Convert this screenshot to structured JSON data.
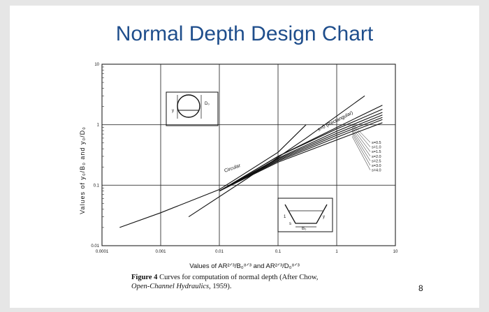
{
  "slide": {
    "title": "Normal Depth Design Chart",
    "page_number": "8"
  },
  "chart_data": {
    "type": "line",
    "title": "",
    "xlabel": "Values of AR²ᐟ³/B₀⁸ᐟ³ and AR²ᐟ³/D₀⁸ᐟ³",
    "ylabel": "Values of y₀/B₀ and y₀/D₀",
    "x_scale": "log",
    "y_scale": "log",
    "xlim": [
      0.0001,
      10
    ],
    "ylim": [
      0.01,
      10
    ],
    "x_ticks": [
      "0.0001",
      "0.001",
      "0.01",
      "0.1",
      "1",
      "10"
    ],
    "y_ticks": [
      "0.01",
      "0.1",
      "1",
      "10"
    ],
    "grid": true,
    "series": [
      {
        "name": "s=0 (Rectangular)",
        "x": [
          0.003,
          0.03,
          0.3,
          3.0
        ],
        "y": [
          0.03,
          0.13,
          0.6,
          3.0
        ]
      },
      {
        "name": "s=0.5",
        "x": [
          0.01,
          0.1,
          1.0,
          6.0
        ],
        "y": [
          0.08,
          0.3,
          0.9,
          2.1
        ]
      },
      {
        "name": "s=1.0",
        "x": [
          0.01,
          0.1,
          1.0,
          6.0
        ],
        "y": [
          0.08,
          0.3,
          0.85,
          1.8
        ]
      },
      {
        "name": "s=1.5",
        "x": [
          0.01,
          0.1,
          1.0,
          6.0
        ],
        "y": [
          0.08,
          0.28,
          0.78,
          1.6
        ]
      },
      {
        "name": "s=2.0",
        "x": [
          0.01,
          0.1,
          1.0,
          6.0
        ],
        "y": [
          0.08,
          0.27,
          0.72,
          1.45
        ]
      },
      {
        "name": "s=2.5",
        "x": [
          0.01,
          0.1,
          1.0,
          6.0
        ],
        "y": [
          0.08,
          0.26,
          0.67,
          1.32
        ]
      },
      {
        "name": "s=3.0",
        "x": [
          0.01,
          0.1,
          1.0,
          6.0
        ],
        "y": [
          0.08,
          0.25,
          0.62,
          1.22
        ]
      },
      {
        "name": "s=4.0",
        "x": [
          0.01,
          0.1,
          1.0,
          6.0
        ],
        "y": [
          0.08,
          0.24,
          0.56,
          1.08
        ]
      },
      {
        "name": "Circular",
        "x": [
          0.0002,
          0.001,
          0.01,
          0.1,
          0.3
        ],
        "y": [
          0.02,
          0.035,
          0.085,
          0.35,
          1.0
        ]
      }
    ],
    "annotations": {
      "rectangular_label": "s=0 (Rectangular)",
      "circular_label": "Circular",
      "legend": [
        "s=0.5",
        "s=1.0",
        "s=1.5",
        "s=2.0",
        "s=2.5",
        "s=3.0",
        "s=4.0"
      ],
      "circle_diagram_label": "D₀",
      "circle_depth_label": "y",
      "trap_bottom_label": "B₀",
      "trap_side_label": "1",
      "trap_slope_label": "s",
      "trap_depth_label": "y"
    },
    "caption": {
      "label": "Figure 4",
      "text": "Curves for computation of normal depth (After Chow,",
      "source_title": "Open-Channel Hydraulics",
      "year": ", 1959)."
    }
  }
}
